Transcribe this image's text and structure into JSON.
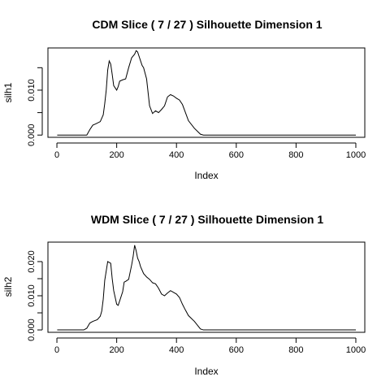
{
  "chart_data": [
    {
      "type": "line",
      "title": "CDM Slice ( 7 / 27 )  Silhouette Dimension 1",
      "xlabel": "Index",
      "ylabel": "silh1",
      "xlim": [
        -30,
        1030
      ],
      "ylim": [
        -0.0005,
        0.0194
      ],
      "x_ticks": [
        0,
        200,
        400,
        600,
        800,
        1000
      ],
      "y_ticks": [
        0.0,
        0.005,
        0.01,
        0.015
      ],
      "y_tick_labels": [
        "0.000",
        "",
        "0.010",
        ""
      ],
      "series": [
        {
          "x": [
            1,
            100,
            110,
            120,
            130,
            145,
            155,
            160,
            165,
            170,
            175,
            180,
            185,
            190,
            200,
            205,
            210,
            220,
            230,
            240,
            250,
            260,
            265,
            270,
            275,
            280,
            285,
            290,
            300,
            310,
            320,
            330,
            340,
            350,
            360,
            370,
            380,
            390,
            400,
            410,
            420,
            430,
            440,
            460,
            480,
            490,
            500,
            600,
            700,
            800,
            900,
            1000
          ],
          "y": [
            0.0,
            0.0,
            0.0012,
            0.0022,
            0.0025,
            0.003,
            0.0045,
            0.007,
            0.01,
            0.0145,
            0.0165,
            0.0158,
            0.0135,
            0.011,
            0.01,
            0.0108,
            0.012,
            0.0123,
            0.0125,
            0.015,
            0.0172,
            0.018,
            0.0188,
            0.0185,
            0.0175,
            0.0165,
            0.0155,
            0.015,
            0.0125,
            0.0065,
            0.0048,
            0.0054,
            0.005,
            0.0057,
            0.0065,
            0.0085,
            0.009,
            0.0087,
            0.0082,
            0.0078,
            0.0068,
            0.005,
            0.0032,
            0.0015,
            0.0002,
            0.0,
            0.0,
            0.0,
            0.0,
            0.0,
            0.0,
            0.0
          ]
        }
      ]
    },
    {
      "type": "line",
      "title": "WDM Slice ( 7 / 27 )  Silhouette Dimension 1",
      "xlabel": "Index",
      "ylabel": "silh2",
      "xlim": [
        -30,
        1030
      ],
      "ylim": [
        -0.0007,
        0.0257
      ],
      "x_ticks": [
        0,
        200,
        400,
        600,
        800,
        1000
      ],
      "y_ticks": [
        0.0,
        0.005,
        0.01,
        0.015,
        0.02
      ],
      "y_tick_labels": [
        "0.000",
        "",
        "0.010",
        "",
        "0.020"
      ],
      "series": [
        {
          "x": [
            1,
            90,
            100,
            110,
            120,
            135,
            145,
            150,
            155,
            160,
            170,
            180,
            185,
            190,
            200,
            205,
            210,
            220,
            225,
            230,
            240,
            250,
            255,
            260,
            265,
            270,
            275,
            280,
            290,
            300,
            310,
            320,
            330,
            340,
            350,
            360,
            370,
            380,
            390,
            400,
            410,
            420,
            430,
            440,
            460,
            480,
            490,
            500,
            600,
            700,
            800,
            900,
            1000
          ],
          "y": [
            0.0,
            0.0,
            0.0005,
            0.002,
            0.0025,
            0.003,
            0.004,
            0.0055,
            0.009,
            0.0145,
            0.02,
            0.0195,
            0.015,
            0.0115,
            0.0075,
            0.0072,
            0.0085,
            0.0112,
            0.014,
            0.0142,
            0.0148,
            0.019,
            0.0215,
            0.0248,
            0.0232,
            0.021,
            0.02,
            0.0185,
            0.0165,
            0.0155,
            0.0148,
            0.0138,
            0.0135,
            0.0122,
            0.0105,
            0.01,
            0.0108,
            0.0115,
            0.011,
            0.0105,
            0.0095,
            0.0075,
            0.0058,
            0.0042,
            0.0025,
            0.0003,
            0.0,
            0.0,
            0.0,
            0.0,
            0.0,
            0.0,
            0.0
          ]
        }
      ]
    }
  ]
}
